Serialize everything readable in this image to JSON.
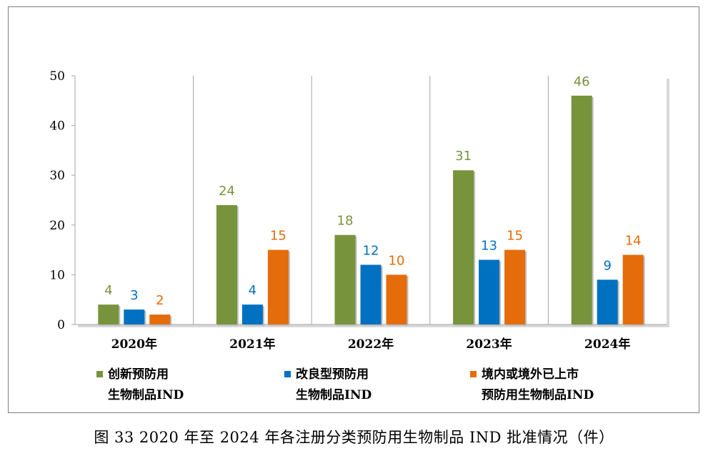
{
  "chart_data": {
    "type": "bar",
    "categories": [
      "2020年",
      "2021年",
      "2022年",
      "2023年",
      "2024年"
    ],
    "series": [
      {
        "name_line1": "创新预防用",
        "name_line2": "生物制品IND",
        "color": "#77933c",
        "label_color": "#77933c",
        "values": [
          4,
          24,
          18,
          31,
          46
        ]
      },
      {
        "name_line1": "改良型预防用",
        "name_line2": "生物制品IND",
        "color": "#0070c0",
        "label_color": "#0070c0",
        "values": [
          3,
          4,
          12,
          13,
          9
        ]
      },
      {
        "name_line1": "境内或境外已上市",
        "name_line2": "预防用生物制品IND",
        "color": "#e46c0a",
        "label_color": "#e46c0a",
        "values": [
          2,
          15,
          10,
          15,
          14
        ]
      }
    ],
    "y_ticks": [
      "0",
      "10",
      "20",
      "30",
      "40",
      "50"
    ],
    "ylim": [
      0,
      50
    ],
    "title": "",
    "xlabel": "",
    "ylabel": "",
    "legend_position": "bottom"
  },
  "caption": "图 33 2020 年至 2024 年各注册分类预防用生物制品 IND 批准情况（件）"
}
